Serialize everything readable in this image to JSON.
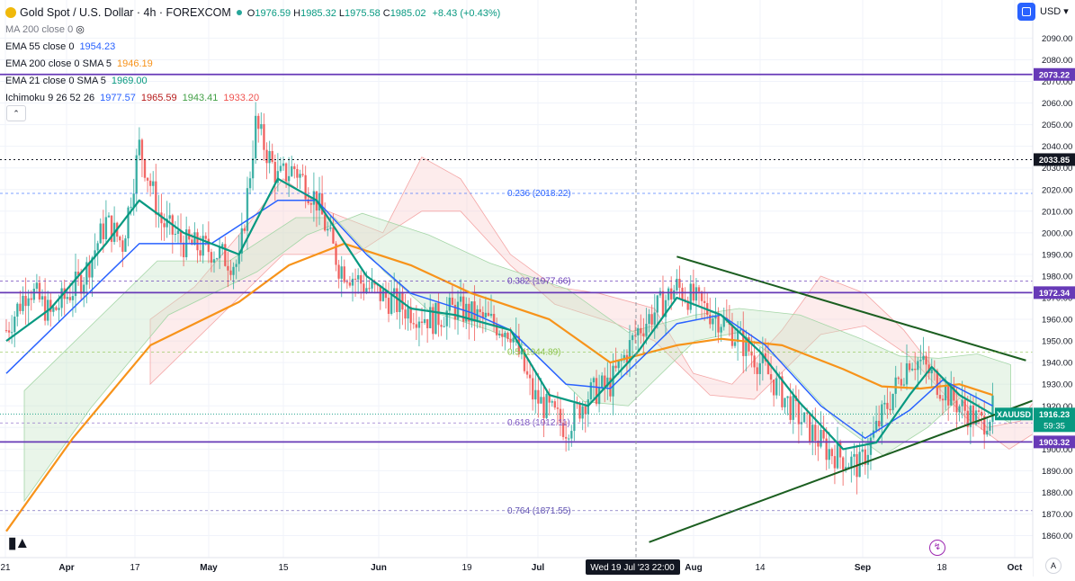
{
  "header": {
    "title": "Gold Spot / U.S. Dollar · 4h · FOREXCOM",
    "ohlc": [
      {
        "k": "O",
        "v": "1976.59"
      },
      {
        "k": "H",
        "v": "1985.32"
      },
      {
        "k": "L",
        "v": "1975.58"
      },
      {
        "k": "C",
        "v": "1985.02"
      }
    ],
    "change": "+8.43 (+0.43%)",
    "currency": "USD",
    "indicators": [
      {
        "label": "MA 200 close 0",
        "values": [],
        "hidden": true
      },
      {
        "label": "EMA 55 close 0",
        "values": [
          {
            "v": "1954.23",
            "color": "#2962ff"
          }
        ]
      },
      {
        "label": "EMA 200 close 0 SMA 5",
        "values": [
          {
            "v": "1946.19",
            "color": "#f7931a"
          }
        ]
      },
      {
        "label": "EMA 21 close 0 SMA 5",
        "values": [
          {
            "v": "1969.00",
            "color": "#089981"
          }
        ]
      },
      {
        "label": "Ichimoku 9 26 52 26",
        "values": [
          {
            "v": "1977.57",
            "color": "#2962ff"
          },
          {
            "v": "1965.59",
            "color": "#b71c1c"
          },
          {
            "v": "1943.41",
            "color": "#43a047"
          },
          {
            "v": "1933.20",
            "color": "#ef5350"
          }
        ]
      }
    ]
  },
  "chart_data": {
    "type": "line",
    "symbol": "XAUUSD",
    "yaxis": {
      "ticks": [
        1860,
        1870,
        1880,
        1890,
        1900,
        1910,
        1920,
        1930,
        1940,
        1950,
        1960,
        1970,
        1980,
        1990,
        2000,
        2010,
        2020,
        2030,
        2040,
        2050,
        2060,
        2070,
        2080,
        2090
      ],
      "range": [
        1853,
        2100
      ]
    },
    "xaxis": {
      "tick_labels": [
        "21",
        "Apr",
        "17",
        "May",
        "15",
        "Jun",
        "19",
        "Jul",
        "Aug",
        "14",
        "Sep",
        "18",
        "Oct"
      ],
      "crosshair_label": "Wed 19 Jul '23   22:00"
    },
    "horizontal_levels": [
      {
        "value": 2073.22,
        "label": "2073.22",
        "color": "#673ab7",
        "style": "solid"
      },
      {
        "value": 1972.34,
        "label": "1972.34",
        "color": "#673ab7",
        "style": "solid"
      },
      {
        "value": 1903.32,
        "label": "1903.32",
        "color": "#673ab7",
        "style": "solid"
      },
      {
        "value": 2033.85,
        "label": "2033.85",
        "color": "#131722",
        "style": "dotted"
      }
    ],
    "fibonacci": [
      {
        "level": "0.236",
        "value": 2018.22,
        "label": "0.236 (2018.22)",
        "color": "#2962ff"
      },
      {
        "level": "0.382",
        "value": 1977.66,
        "label": "0.382 (1977.66)",
        "color": "#673ab7"
      },
      {
        "level": "0.5",
        "value": 1944.89,
        "label": "0.5 (1944.89)",
        "color": "#8bc34a"
      },
      {
        "level": "0.618",
        "value": 1912.11,
        "label": "0.618 (1912.11)",
        "color": "#7e57c2"
      },
      {
        "level": "0.764",
        "value": 1871.55,
        "label": "0.764 (1871.55)",
        "color": "#5d4eb0"
      }
    ],
    "last_price": {
      "label": "XAUUSD",
      "value": "1916.23",
      "countdown": "59:35",
      "color": "#089981"
    },
    "trendlines": [
      {
        "name": "upper",
        "from": [
          "Jul 19",
          1989
        ],
        "to": [
          "Sep 20",
          1941
        ],
        "color": "#1b5e20"
      },
      {
        "name": "lower",
        "from": [
          "Jul 14",
          1857
        ],
        "to": [
          "Sep 24",
          1925
        ],
        "color": "#1b5e20"
      }
    ],
    "price_path": [
      [
        "Mar 20",
        1955
      ],
      [
        "Mar 24",
        1975
      ],
      [
        "Mar 28",
        1962
      ],
      [
        "Apr 3",
        1980
      ],
      [
        "Apr 7",
        2005
      ],
      [
        "Apr 10",
        1995
      ],
      [
        "Apr 13",
        2040
      ],
      [
        "Apr 17",
        2005
      ],
      [
        "Apr 21",
        1995
      ],
      [
        "Apr 26",
        1992
      ],
      [
        "May 1",
        1985
      ],
      [
        "May 4",
        2050
      ],
      [
        "May 8",
        2025
      ],
      [
        "May 11",
        2030
      ],
      [
        "May 15",
        2015
      ],
      [
        "May 19",
        1985
      ],
      [
        "May 24",
        1975
      ],
      [
        "May 31",
        1965
      ],
      [
        "Jun 5",
        1960
      ],
      [
        "Jun 9",
        1965
      ],
      [
        "Jun 14",
        1960
      ],
      [
        "Jun 19",
        1955
      ],
      [
        "Jun 23",
        1925
      ],
      [
        "Jun 29",
        1910
      ],
      [
        "Jul 3",
        1925
      ],
      [
        "Jul 7",
        1930
      ],
      [
        "Jul 12",
        1955
      ],
      [
        "Jul 19",
        1975
      ],
      [
        "Jul 24",
        1965
      ],
      [
        "Jul 27",
        1960
      ],
      [
        "Aug 3",
        1940
      ],
      [
        "Aug 9",
        1918
      ],
      [
        "Aug 15",
        1900
      ],
      [
        "Aug 21",
        1892
      ],
      [
        "Aug 25",
        1915
      ],
      [
        "Aug 30",
        1942
      ],
      [
        "Sep 1",
        1940
      ],
      [
        "Sep 5",
        1928
      ],
      [
        "Sep 8",
        1920
      ],
      [
        "Sep 12",
        1912
      ],
      [
        "Sep 14",
        1918
      ]
    ],
    "ema21": [
      [
        "Mar 20",
        1950
      ],
      [
        "Mar 28",
        1965
      ],
      [
        "Apr 7",
        1995
      ],
      [
        "Apr 13",
        2015
      ],
      [
        "Apr 21",
        2000
      ],
      [
        "May 1",
        1990
      ],
      [
        "May 8",
        2025
      ],
      [
        "May 15",
        2015
      ],
      [
        "May 24",
        1980
      ],
      [
        "Jun 1",
        1965
      ],
      [
        "Jun 9",
        1962
      ],
      [
        "Jun 19",
        1955
      ],
      [
        "Jun 26",
        1925
      ],
      [
        "Jul 3",
        1920
      ],
      [
        "Jul 12",
        1945
      ],
      [
        "Jul 19",
        1970
      ],
      [
        "Jul 27",
        1962
      ],
      [
        "Aug 3",
        1945
      ],
      [
        "Aug 10",
        1922
      ],
      [
        "Aug 18",
        1900
      ],
      [
        "Aug 24",
        1903
      ],
      [
        "Aug 30",
        1925
      ],
      [
        "Sep 3",
        1938
      ],
      [
        "Sep 8",
        1925
      ],
      [
        "Sep 14",
        1916
      ]
    ],
    "ema55": [
      [
        "Mar 20",
        1935
      ],
      [
        "Apr 3",
        1970
      ],
      [
        "Apr 13",
        1995
      ],
      [
        "Apr 26",
        1995
      ],
      [
        "May 8",
        2015
      ],
      [
        "May 15",
        2015
      ],
      [
        "May 24",
        1990
      ],
      [
        "Jun 1",
        1972
      ],
      [
        "Jun 12",
        1963
      ],
      [
        "Jun 19",
        1955
      ],
      [
        "Jun 29",
        1930
      ],
      [
        "Jul 7",
        1928
      ],
      [
        "Jul 19",
        1958
      ],
      [
        "Jul 27",
        1962
      ],
      [
        "Aug 4",
        1948
      ],
      [
        "Aug 14",
        1920
      ],
      [
        "Aug 22",
        1905
      ],
      [
        "Aug 30",
        1918
      ],
      [
        "Sep 5",
        1932
      ],
      [
        "Sep 14",
        1920
      ]
    ],
    "ema200": [
      [
        "Mar 20",
        1862
      ],
      [
        "Apr 1",
        1905
      ],
      [
        "Apr 15",
        1948
      ],
      [
        "May 1",
        1968
      ],
      [
        "May 10",
        1985
      ],
      [
        "May 20",
        1995
      ],
      [
        "Jun 1",
        1985
      ],
      [
        "Jun 12",
        1972
      ],
      [
        "Jun 26",
        1960
      ],
      [
        "Jul 7",
        1940
      ],
      [
        "Jul 19",
        1948
      ],
      [
        "Jul 27",
        1951
      ],
      [
        "Aug 7",
        1948
      ],
      [
        "Aug 18",
        1937
      ],
      [
        "Aug 25",
        1929
      ],
      [
        "Sep 1",
        1928
      ],
      [
        "Sep 8",
        1930
      ],
      [
        "Sep 14",
        1925
      ]
    ]
  }
}
